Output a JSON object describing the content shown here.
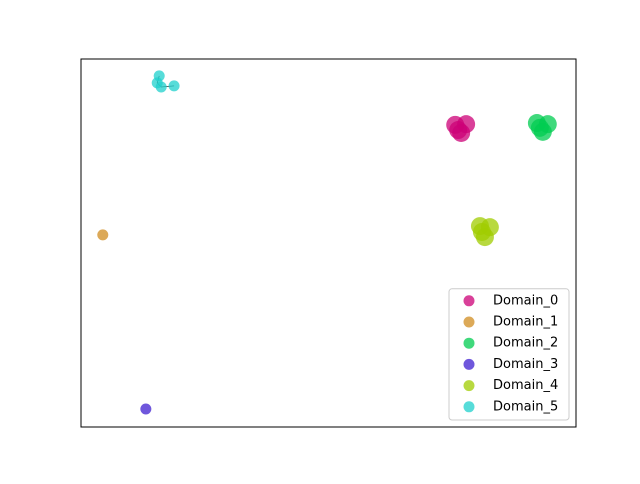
{
  "chart_data": {
    "type": "scatter",
    "xlim": [
      0,
      1
    ],
    "ylim": [
      0,
      1
    ],
    "legend": "lower right",
    "series": [
      {
        "name": "Domain_0",
        "color": "#cc0077",
        "x": [
          0.756,
          0.778,
          0.768,
          0.762
        ],
        "y": [
          0.821,
          0.823,
          0.799,
          0.807
        ]
      },
      {
        "name": "Domain_1",
        "color": "#d08c20",
        "x": [
          0.044
        ],
        "y": [
          0.522
        ]
      },
      {
        "name": "Domain_2",
        "color": "#00cc50",
        "x": [
          0.921,
          0.943,
          0.933,
          0.927
        ],
        "y": [
          0.826,
          0.823,
          0.802,
          0.813
        ]
      },
      {
        "name": "Domain_3",
        "color": "#3f1fd0",
        "x": [
          0.131
        ],
        "y": [
          0.049
        ]
      },
      {
        "name": "Domain_4",
        "color": "#a0cc00",
        "x": [
          0.806,
          0.826,
          0.816,
          0.81
        ],
        "y": [
          0.546,
          0.543,
          0.516,
          0.53
        ]
      },
      {
        "name": "Domain_5",
        "color": "#1fd0cc",
        "connected": true,
        "x": [
          0.158,
          0.154,
          0.162,
          0.188
        ],
        "y": [
          0.954,
          0.935,
          0.924,
          0.927
        ]
      }
    ]
  }
}
